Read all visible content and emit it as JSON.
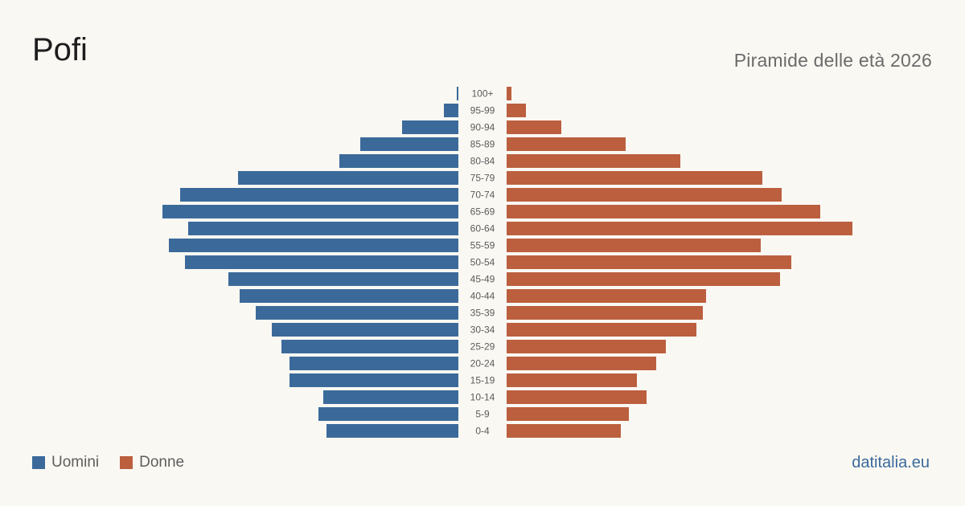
{
  "header": {
    "title": "Pofi",
    "subtitle": "Piramide delle età 2026"
  },
  "legend": {
    "men_label": "Uomini",
    "women_label": "Donne"
  },
  "brand": "datitalia.eu",
  "colors": {
    "men": "#3b6a9a",
    "women": "#bb5f3e",
    "background": "#faf8f3",
    "tick_label": "#5a5a5a"
  },
  "chart_data": {
    "type": "bar",
    "orientation": "horizontal-pyramid",
    "categories": [
      "100+",
      "95-99",
      "90-94",
      "85-89",
      "80-84",
      "75-79",
      "70-74",
      "65-69",
      "60-64",
      "55-59",
      "50-54",
      "45-49",
      "40-44",
      "35-39",
      "30-34",
      "25-29",
      "20-24",
      "15-19",
      "10-14",
      "5-9",
      "0-4"
    ],
    "series": [
      {
        "name": "Uomini",
        "values": [
          1,
          9,
          35,
          61,
          74,
          137,
          173,
          184,
          168,
          180,
          170,
          143,
          136,
          126,
          116,
          110,
          105,
          105,
          84,
          87,
          82
        ]
      },
      {
        "name": "Donne",
        "values": [
          3,
          12,
          34,
          74,
          108,
          159,
          171,
          195,
          215,
          158,
          177,
          170,
          124,
          122,
          118,
          99,
          93,
          81,
          87,
          76,
          71
        ]
      }
    ],
    "xlim": [
      0,
      215
    ]
  }
}
